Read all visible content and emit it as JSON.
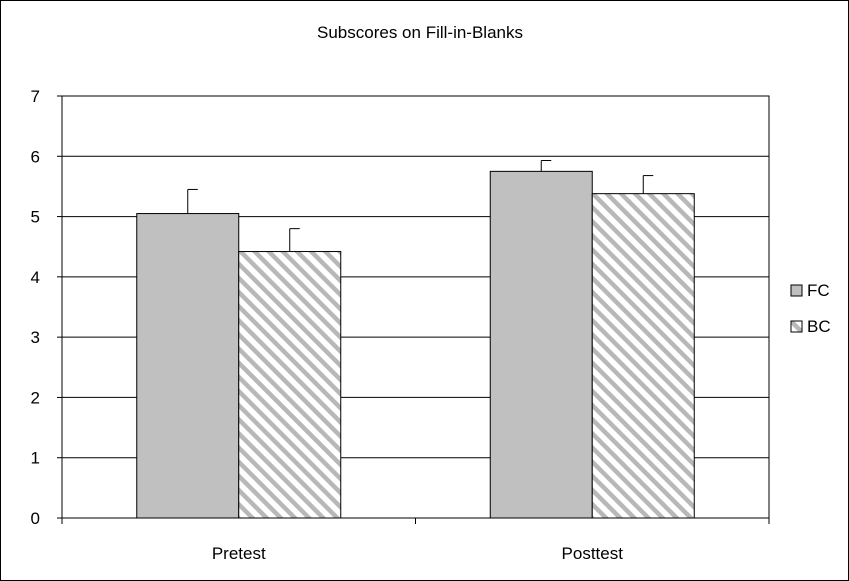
{
  "chart_data": {
    "type": "bar",
    "title": "Subscores on Fill-in-Blanks",
    "xlabel": "",
    "ylabel": "",
    "categories": [
      "Pretest",
      "Posttest"
    ],
    "series": [
      {
        "name": "FC",
        "values": [
          5.05,
          5.75
        ],
        "error_upper": [
          0.4,
          0.18
        ],
        "fill": "#c0c0c0",
        "pattern": "solid"
      },
      {
        "name": "BC",
        "values": [
          4.42,
          5.38
        ],
        "error_upper": [
          0.38,
          0.3
        ],
        "fill": "#ffffff",
        "pattern": "diagonal-stripes",
        "stripe_color": "#b8b8b8"
      }
    ],
    "ylim": [
      0,
      7
    ],
    "yticks": [
      "0",
      "1",
      "2",
      "3",
      "4",
      "5",
      "6",
      "7"
    ],
    "grid": true,
    "legend_position": "right"
  }
}
